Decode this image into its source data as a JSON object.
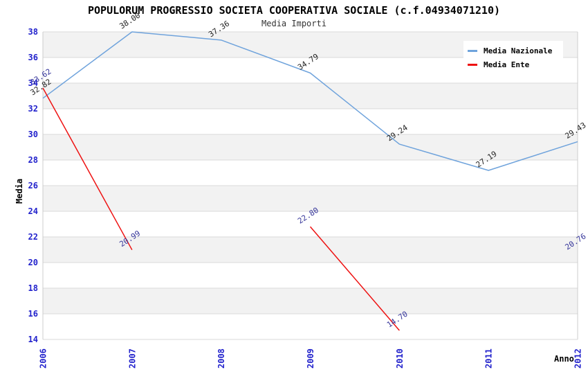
{
  "chart_data": {
    "type": "line",
    "title": "POPULORUM PROGRESSIO SOCIETA COOPERATIVA SOCIALE (c.f.04934071210)",
    "subtitle": "Media Importi",
    "xlabel": "Anno",
    "ylabel": "Media",
    "categories": [
      "2006",
      "2007",
      "2008",
      "2009",
      "2010",
      "2011",
      "2012"
    ],
    "ylim": [
      14,
      38
    ],
    "ytick_step": 2,
    "yticks": [
      14,
      16,
      18,
      20,
      22,
      24,
      26,
      28,
      30,
      32,
      34,
      36,
      38
    ],
    "grid": true,
    "banded_background": true,
    "legend_position": "top-right",
    "series": [
      {
        "name": "Media Nazionale",
        "color": "#6fa3dc",
        "label_color": "#222222",
        "values": [
          32.82,
          38.0,
          37.36,
          34.79,
          29.24,
          27.19,
          29.43
        ]
      },
      {
        "name": "Media Ente",
        "color": "#ee1111",
        "label_color": "#333399",
        "values": [
          33.62,
          20.99,
          null,
          22.8,
          14.7,
          null,
          20.76
        ]
      }
    ],
    "colors": {
      "axis_labels": "#2222cc",
      "band": "#f2f2f2",
      "gridline": "#d9d9d9",
      "plot_border": "#cccccc",
      "title": "#000000",
      "subtitle": "#333333"
    }
  }
}
